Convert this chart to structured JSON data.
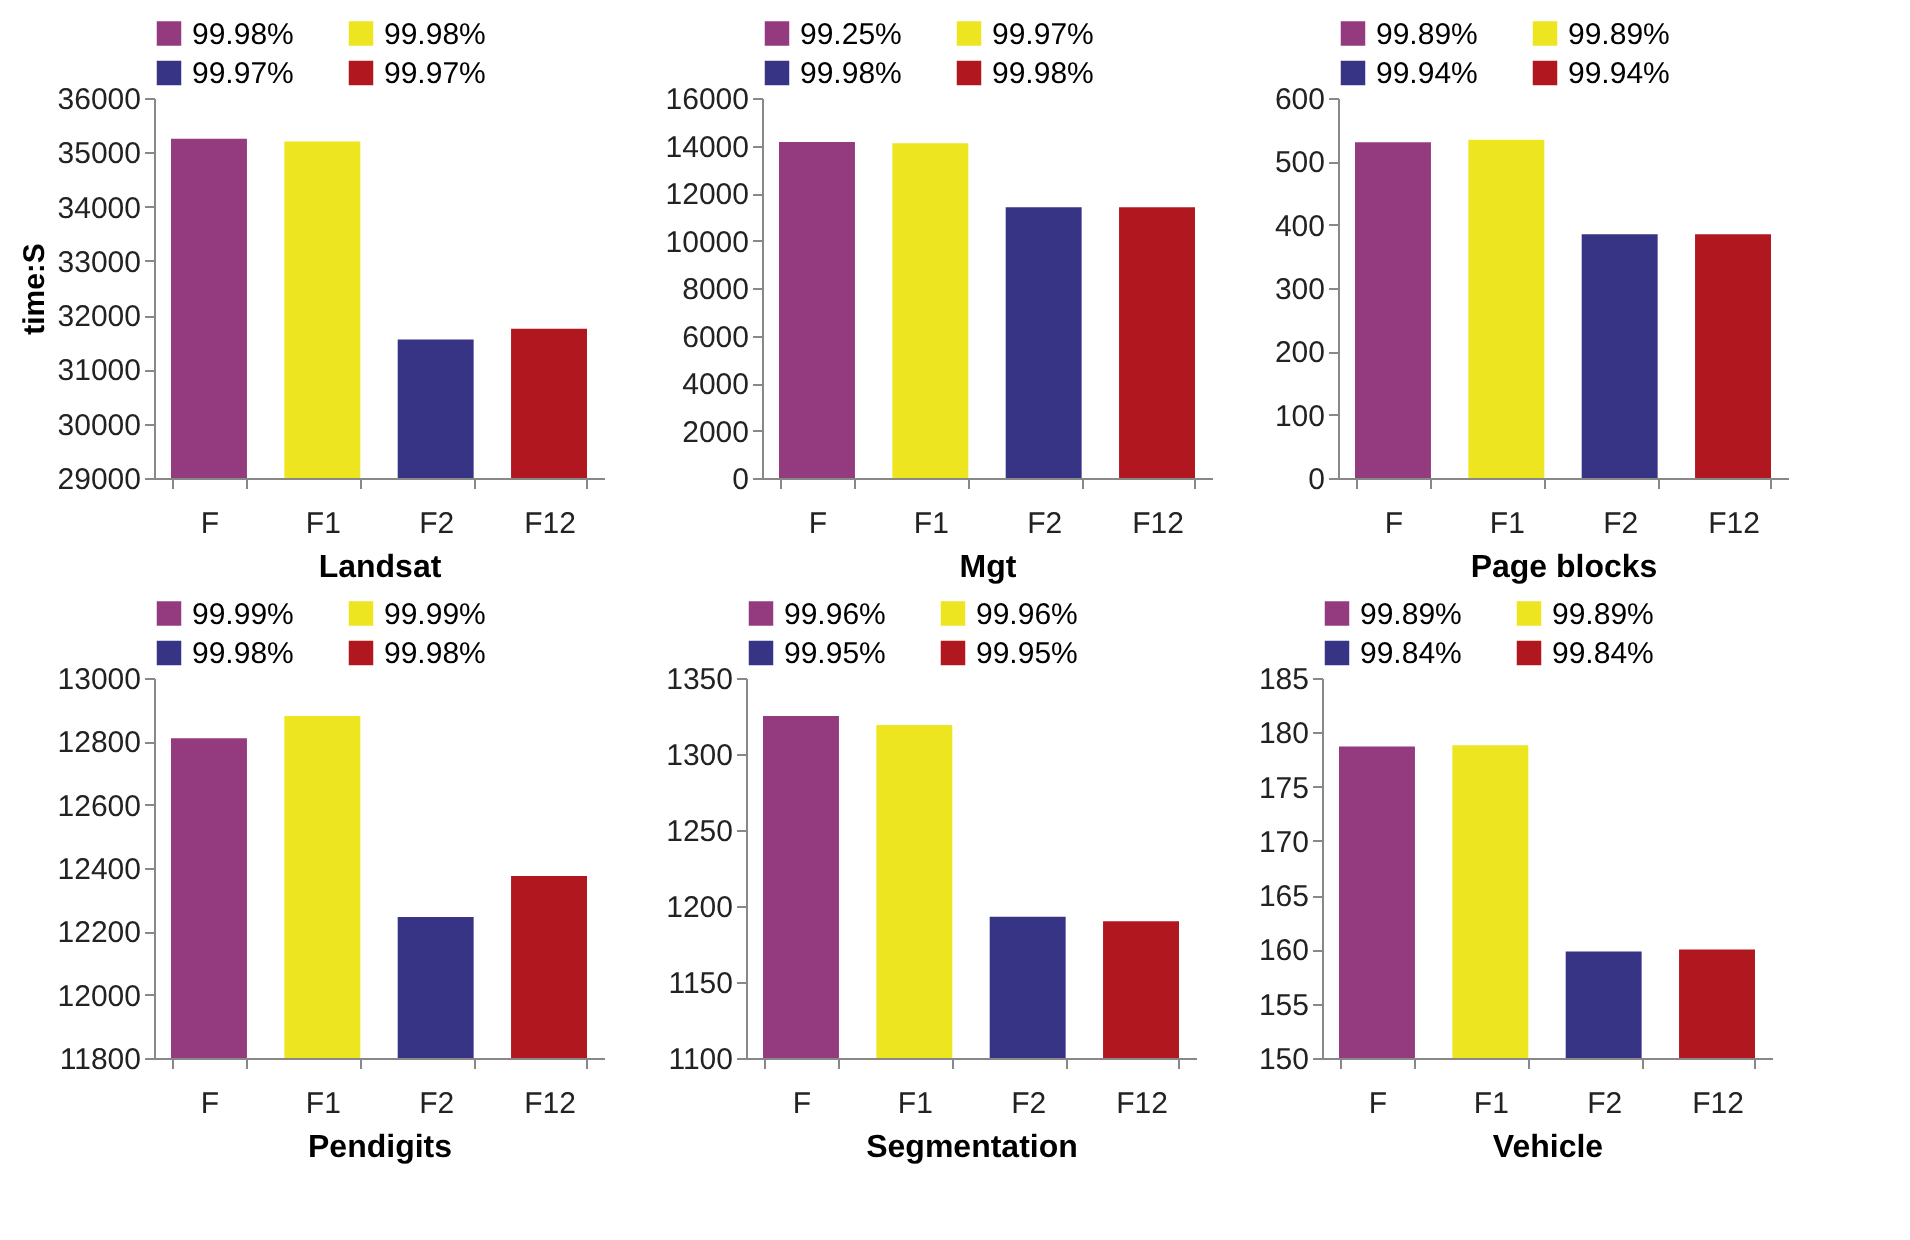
{
  "chart_data": [
    {
      "type": "bar",
      "xlabel": "Landsat",
      "ylabel": "time:S",
      "categories": [
        "F",
        "F1",
        "F2",
        "F12"
      ],
      "ylim": [
        29000,
        36000
      ],
      "yticks": [
        29000,
        30000,
        31000,
        32000,
        33000,
        34000,
        35000,
        36000
      ],
      "legend": "top",
      "grid": false,
      "series": [
        {
          "name": "99.98%",
          "color": "#943a7e",
          "values": [
            35250,
            null,
            null,
            null
          ]
        },
        {
          "name": "99.98%",
          "color": "#ede51f",
          "values": [
            null,
            35200,
            null,
            null
          ]
        },
        {
          "name": "99.97%",
          "color": "#373385",
          "values": [
            null,
            null,
            31550,
            null
          ]
        },
        {
          "name": "99.97%",
          "color": "#b0171f",
          "values": [
            null,
            null,
            null,
            31750
          ]
        }
      ]
    },
    {
      "type": "bar",
      "xlabel": "Mgt",
      "categories": [
        "F",
        "F1",
        "F2",
        "F12"
      ],
      "ylim": [
        0,
        16000
      ],
      "yticks": [
        0,
        2000,
        4000,
        6000,
        8000,
        10000,
        12000,
        14000,
        16000
      ],
      "legend": "top",
      "grid": false,
      "series": [
        {
          "name": "99.25%",
          "color": "#943a7e",
          "values": [
            14150,
            null,
            null,
            null
          ]
        },
        {
          "name": "99.97%",
          "color": "#ede51f",
          "values": [
            null,
            14100,
            null,
            null
          ]
        },
        {
          "name": "99.98%",
          "color": "#373385",
          "values": [
            null,
            null,
            11400,
            null
          ]
        },
        {
          "name": "99.98%",
          "color": "#b0171f",
          "values": [
            null,
            null,
            null,
            11400
          ]
        }
      ]
    },
    {
      "type": "bar",
      "xlabel": "Page blocks",
      "categories": [
        "F",
        "F1",
        "F2",
        "F12"
      ],
      "ylim": [
        0,
        600
      ],
      "yticks": [
        0,
        100,
        200,
        300,
        400,
        500,
        600
      ],
      "legend": "top",
      "grid": false,
      "series": [
        {
          "name": "99.89%",
          "color": "#943a7e",
          "values": [
            530,
            null,
            null,
            null
          ]
        },
        {
          "name": "99.89%",
          "color": "#ede51f",
          "values": [
            null,
            534,
            null,
            null
          ]
        },
        {
          "name": "99.94%",
          "color": "#373385",
          "values": [
            null,
            null,
            385,
            null
          ]
        },
        {
          "name": "99.94%",
          "color": "#b0171f",
          "values": [
            null,
            null,
            null,
            385
          ]
        }
      ]
    },
    {
      "type": "bar",
      "xlabel": "Pendigits",
      "categories": [
        "F",
        "F1",
        "F2",
        "F12"
      ],
      "ylim": [
        11800,
        13000
      ],
      "yticks": [
        11800,
        12000,
        12200,
        12400,
        12600,
        12800,
        13000
      ],
      "legend": "top",
      "grid": false,
      "series": [
        {
          "name": "99.99%",
          "color": "#943a7e",
          "values": [
            12810,
            null,
            null,
            null
          ]
        },
        {
          "name": "99.99%",
          "color": "#ede51f",
          "values": [
            null,
            12880,
            null,
            null
          ]
        },
        {
          "name": "99.98%",
          "color": "#373385",
          "values": [
            null,
            null,
            12245,
            null
          ]
        },
        {
          "name": "99.98%",
          "color": "#b0171f",
          "values": [
            null,
            null,
            null,
            12375
          ]
        }
      ]
    },
    {
      "type": "bar",
      "xlabel": "Segmentation",
      "categories": [
        "F",
        "F1",
        "F2",
        "F12"
      ],
      "ylim": [
        1100,
        1350
      ],
      "yticks": [
        1100,
        1150,
        1200,
        1250,
        1300,
        1350
      ],
      "legend": "top",
      "grid": false,
      "series": [
        {
          "name": "99.96%",
          "color": "#943a7e",
          "values": [
            1325,
            null,
            null,
            null
          ]
        },
        {
          "name": "99.96%",
          "color": "#ede51f",
          "values": [
            null,
            1319,
            null,
            null
          ]
        },
        {
          "name": "99.95%",
          "color": "#373385",
          "values": [
            null,
            null,
            1193,
            null
          ]
        },
        {
          "name": "99.95%",
          "color": "#b0171f",
          "values": [
            null,
            null,
            null,
            1190
          ]
        }
      ]
    },
    {
      "type": "bar",
      "xlabel": "Vehicle",
      "categories": [
        "F",
        "F1",
        "F2",
        "F12"
      ],
      "ylim": [
        150,
        185
      ],
      "yticks": [
        150,
        155,
        160,
        165,
        170,
        175,
        180,
        185
      ],
      "legend": "top",
      "grid": false,
      "series": [
        {
          "name": "99.89%",
          "color": "#943a7e",
          "values": [
            178.7,
            null,
            null,
            null
          ]
        },
        {
          "name": "99.89%",
          "color": "#ede51f",
          "values": [
            null,
            178.8,
            null,
            null
          ]
        },
        {
          "name": "99.84%",
          "color": "#373385",
          "values": [
            null,
            null,
            159.8,
            null
          ]
        },
        {
          "name": "99.84%",
          "color": "#b0171f",
          "values": [
            null,
            null,
            null,
            160
          ]
        }
      ]
    }
  ]
}
